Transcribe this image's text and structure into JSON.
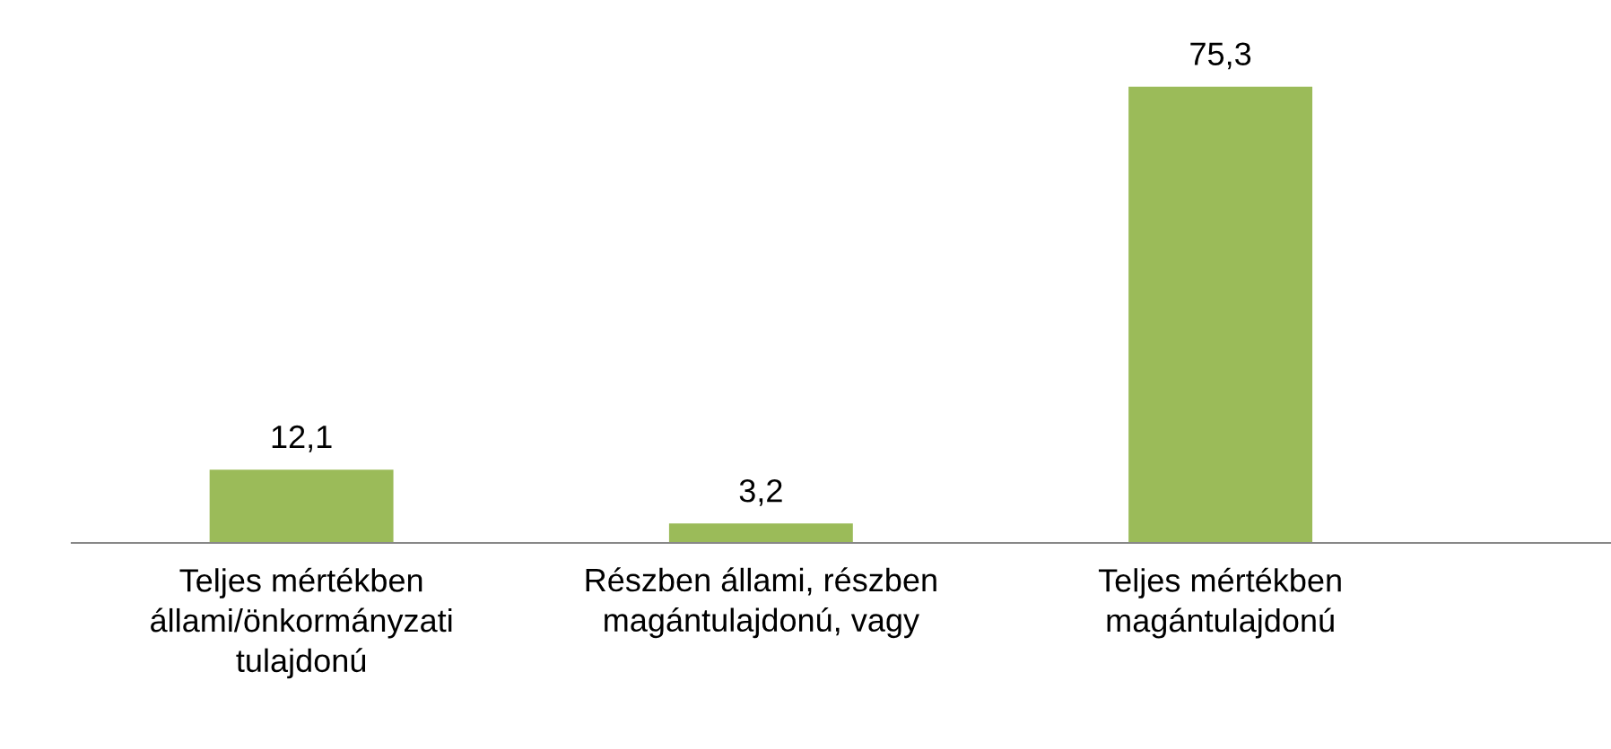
{
  "chart_data": {
    "type": "bar",
    "categories": [
      "Teljes mértékben\nállami/önkormányzati\ntulajdonú",
      "Részben állami, részben\nmagántulajdonú, vagy",
      "Teljes mértékben\nmagántulajdonú"
    ],
    "values": [
      12.1,
      3.2,
      75.3
    ],
    "value_labels": [
      "12,1",
      "3,2",
      "75,3"
    ],
    "color": "#9bbb59",
    "grid": false,
    "legend": false
  }
}
